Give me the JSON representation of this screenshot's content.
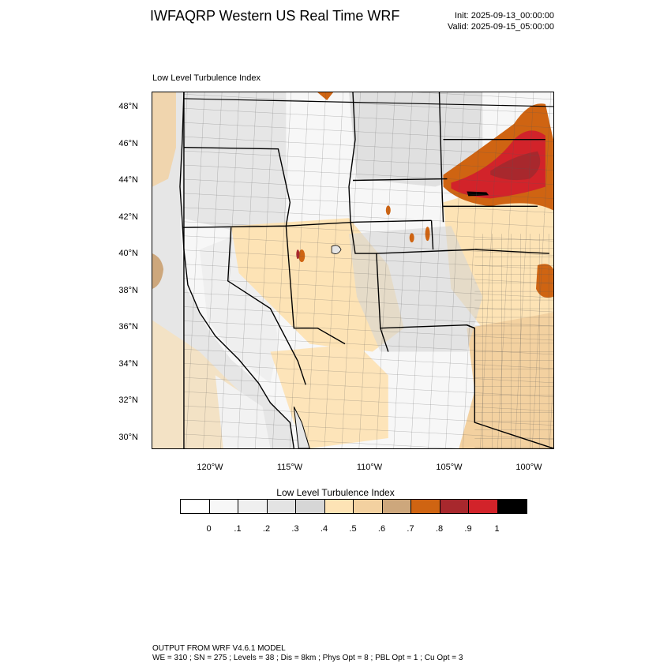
{
  "header": {
    "title": "IWFAQRP Western US Real Time WRF",
    "init": "Init: 2025-09-13_00:00:00",
    "valid": "Valid: 2025-09-15_05:00:00"
  },
  "map": {
    "field_label": "Low Level Turbulence Index",
    "lat_labels": [
      "48°N",
      "46°N",
      "44°N",
      "42°N",
      "40°N",
      "38°N",
      "36°N",
      "34°N",
      "32°N",
      "30°N"
    ],
    "lon_labels": [
      "120°W",
      "115°W",
      "110°W",
      "105°W",
      "100°W"
    ]
  },
  "colorbar": {
    "title": "Low Level Turbulence Index",
    "colors": [
      "#ffffff",
      "#f7f7f7",
      "#efefef",
      "#e3e3e3",
      "#d6d6d6",
      "#fde3b5",
      "#f3d1a0",
      "#cda77c",
      "#cf6412",
      "#a8282d",
      "#d2232a",
      "#000000"
    ],
    "tick_labels": [
      "0",
      ".1",
      ".2",
      ".3",
      ".4",
      ".5",
      ".6",
      ".7",
      ".8",
      ".9",
      "1"
    ]
  },
  "footer": {
    "line1": "OUTPUT FROM WRF V4.6.1 MODEL",
    "line2": "WE = 310 ; SN = 275 ; Levels = 38 ; Dis = 8km ; Phys Opt = 8 ; PBL Opt = 1 ; Cu Opt = 3"
  }
}
